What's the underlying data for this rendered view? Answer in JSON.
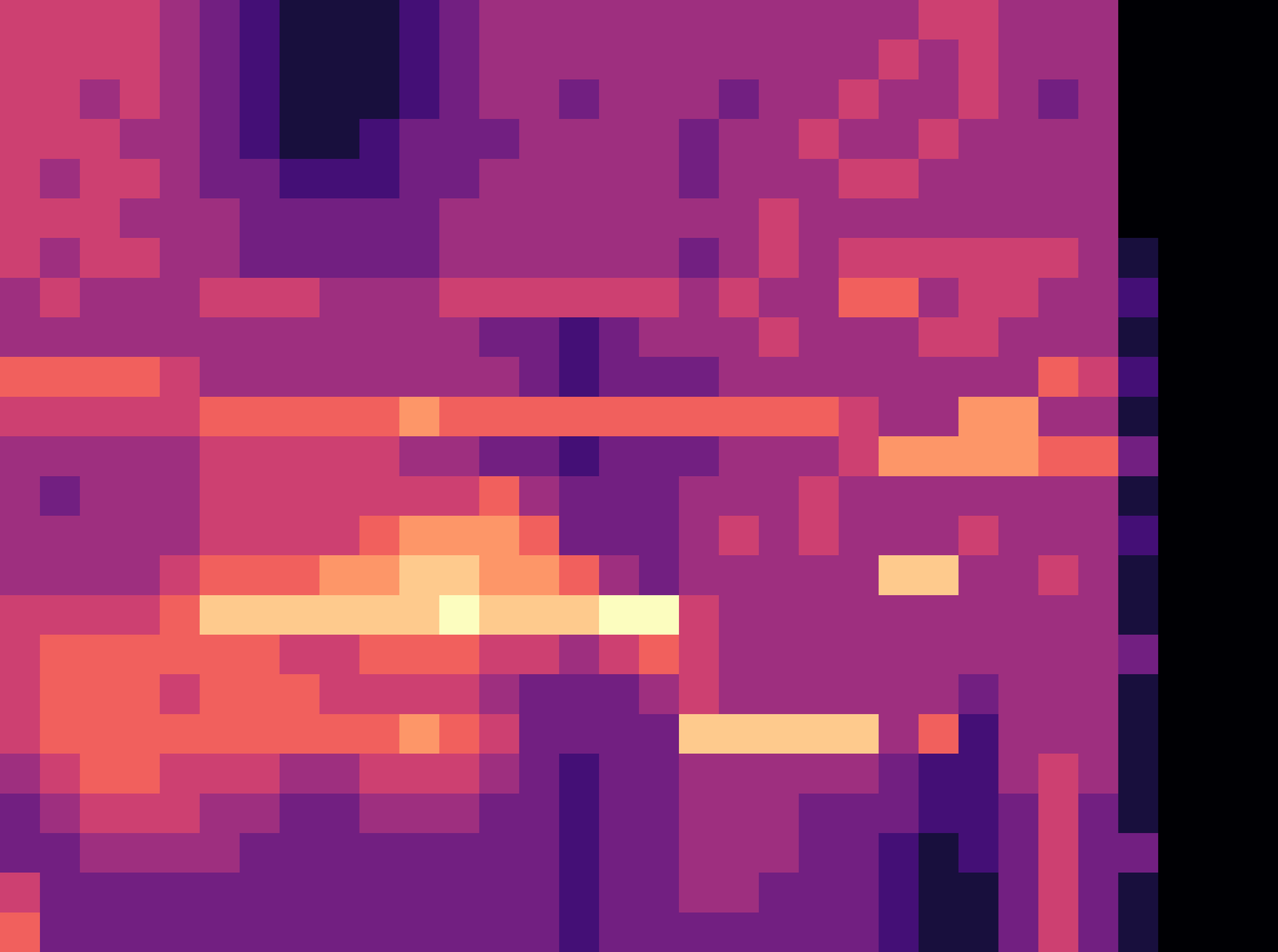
{
  "chart_data": {
    "type": "heatmap",
    "color": "magma",
    "zlim": [
      0,
      9
    ],
    "tick_labels": false,
    "z": [
      [
        5,
        5,
        5,
        5,
        4,
        3,
        2,
        1,
        1,
        1,
        2,
        3,
        4,
        4,
        4,
        4,
        4,
        4,
        4,
        4,
        4,
        4,
        4,
        5,
        5,
        4,
        4,
        4,
        0,
        0,
        0,
        0
      ],
      [
        5,
        5,
        5,
        5,
        4,
        3,
        2,
        1,
        1,
        1,
        2,
        3,
        4,
        4,
        4,
        4,
        4,
        4,
        4,
        4,
        4,
        4,
        5,
        4,
        5,
        4,
        4,
        4,
        0,
        0,
        0,
        0
      ],
      [
        5,
        5,
        4,
        5,
        4,
        3,
        2,
        1,
        1,
        1,
        2,
        3,
        4,
        4,
        3,
        4,
        4,
        4,
        3,
        4,
        4,
        5,
        4,
        4,
        5,
        4,
        3,
        4,
        0,
        0,
        0,
        0
      ],
      [
        5,
        5,
        5,
        4,
        4,
        3,
        2,
        1,
        1,
        2,
        3,
        3,
        3,
        4,
        4,
        4,
        4,
        3,
        4,
        4,
        5,
        4,
        4,
        5,
        4,
        4,
        4,
        4,
        0,
        0,
        0,
        0
      ],
      [
        5,
        4,
        5,
        5,
        4,
        3,
        3,
        2,
        2,
        2,
        3,
        3,
        4,
        4,
        4,
        4,
        4,
        3,
        4,
        4,
        4,
        5,
        5,
        4,
        4,
        4,
        4,
        4,
        0,
        0,
        0,
        0
      ],
      [
        5,
        5,
        5,
        4,
        4,
        4,
        3,
        3,
        3,
        3,
        3,
        4,
        4,
        4,
        4,
        4,
        4,
        4,
        4,
        5,
        4,
        4,
        4,
        4,
        4,
        4,
        4,
        4,
        0,
        0,
        0,
        0
      ],
      [
        5,
        4,
        5,
        5,
        4,
        4,
        3,
        3,
        3,
        3,
        3,
        4,
        4,
        4,
        4,
        4,
        4,
        3,
        4,
        5,
        4,
        5,
        5,
        5,
        5,
        5,
        5,
        4,
        1,
        0,
        0,
        0
      ],
      [
        4,
        5,
        4,
        4,
        4,
        5,
        5,
        5,
        4,
        4,
        4,
        5,
        5,
        5,
        5,
        5,
        5,
        4,
        5,
        4,
        4,
        6,
        6,
        4,
        5,
        5,
        4,
        4,
        2,
        0,
        0,
        0
      ],
      [
        4,
        4,
        4,
        4,
        4,
        4,
        4,
        4,
        4,
        4,
        4,
        4,
        3,
        3,
        2,
        3,
        4,
        4,
        4,
        5,
        4,
        4,
        4,
        5,
        5,
        4,
        4,
        4,
        1,
        0,
        0,
        0
      ],
      [
        6,
        6,
        6,
        6,
        5,
        4,
        4,
        4,
        4,
        4,
        4,
        4,
        4,
        3,
        2,
        3,
        3,
        3,
        4,
        4,
        4,
        4,
        4,
        4,
        4,
        4,
        6,
        5,
        2,
        0,
        0,
        0
      ],
      [
        5,
        5,
        5,
        5,
        5,
        6,
        6,
        6,
        6,
        6,
        7,
        6,
        6,
        6,
        6,
        6,
        6,
        6,
        6,
        6,
        6,
        5,
        4,
        4,
        7,
        7,
        4,
        4,
        1,
        0,
        0,
        0
      ],
      [
        4,
        4,
        4,
        4,
        4,
        5,
        5,
        5,
        5,
        5,
        4,
        4,
        3,
        3,
        2,
        3,
        3,
        3,
        4,
        4,
        4,
        5,
        7,
        7,
        7,
        7,
        6,
        6,
        3,
        0,
        0,
        0
      ],
      [
        4,
        3,
        4,
        4,
        4,
        5,
        5,
        5,
        5,
        5,
        5,
        5,
        6,
        4,
        3,
        3,
        3,
        4,
        4,
        4,
        5,
        4,
        4,
        4,
        4,
        4,
        4,
        4,
        1,
        0,
        0,
        0
      ],
      [
        4,
        4,
        4,
        4,
        4,
        5,
        5,
        5,
        5,
        6,
        7,
        7,
        7,
        6,
        3,
        3,
        3,
        4,
        5,
        4,
        5,
        4,
        4,
        4,
        5,
        4,
        4,
        4,
        2,
        0,
        0,
        0
      ],
      [
        4,
        4,
        4,
        4,
        5,
        6,
        6,
        6,
        7,
        7,
        8,
        8,
        7,
        7,
        6,
        4,
        3,
        4,
        4,
        4,
        4,
        4,
        8,
        8,
        4,
        4,
        5,
        4,
        1,
        0,
        0,
        0
      ],
      [
        5,
        5,
        5,
        5,
        6,
        8,
        8,
        8,
        8,
        8,
        8,
        9,
        8,
        8,
        8,
        9,
        9,
        5,
        4,
        4,
        4,
        4,
        4,
        4,
        4,
        4,
        4,
        4,
        1,
        0,
        0,
        0
      ],
      [
        5,
        6,
        6,
        6,
        6,
        6,
        6,
        5,
        5,
        6,
        6,
        6,
        5,
        5,
        4,
        5,
        6,
        5,
        4,
        4,
        4,
        4,
        4,
        4,
        4,
        4,
        4,
        4,
        3,
        0,
        0,
        0
      ],
      [
        5,
        6,
        6,
        6,
        5,
        6,
        6,
        6,
        5,
        5,
        5,
        5,
        4,
        3,
        3,
        3,
        4,
        5,
        4,
        4,
        4,
        4,
        4,
        4,
        3,
        4,
        4,
        4,
        1,
        0,
        0,
        0
      ],
      [
        5,
        6,
        6,
        6,
        6,
        6,
        6,
        6,
        6,
        6,
        7,
        6,
        5,
        3,
        3,
        3,
        3,
        8,
        8,
        8,
        8,
        8,
        4,
        6,
        2,
        4,
        4,
        4,
        1,
        0,
        0,
        0
      ],
      [
        4,
        5,
        6,
        6,
        5,
        5,
        5,
        4,
        4,
        5,
        5,
        5,
        4,
        3,
        2,
        3,
        3,
        4,
        4,
        4,
        4,
        4,
        3,
        2,
        2,
        4,
        5,
        4,
        1,
        0,
        0,
        0
      ],
      [
        3,
        4,
        5,
        5,
        5,
        4,
        4,
        3,
        3,
        4,
        4,
        4,
        3,
        3,
        2,
        3,
        3,
        4,
        4,
        4,
        3,
        3,
        3,
        2,
        2,
        3,
        5,
        3,
        1,
        0,
        0,
        0
      ],
      [
        3,
        3,
        4,
        4,
        4,
        4,
        3,
        3,
        3,
        3,
        3,
        3,
        3,
        3,
        2,
        3,
        3,
        4,
        4,
        4,
        3,
        3,
        2,
        1,
        2,
        3,
        5,
        3,
        3,
        0,
        0,
        0
      ],
      [
        5,
        3,
        3,
        3,
        3,
        3,
        3,
        3,
        3,
        3,
        3,
        3,
        3,
        3,
        2,
        3,
        3,
        4,
        4,
        3,
        3,
        3,
        2,
        1,
        1,
        3,
        5,
        3,
        1,
        0,
        0,
        0
      ],
      [
        6,
        3,
        3,
        3,
        3,
        3,
        3,
        3,
        3,
        3,
        3,
        3,
        3,
        3,
        2,
        3,
        3,
        3,
        3,
        3,
        3,
        3,
        2,
        1,
        1,
        3,
        5,
        3,
        1,
        0,
        0,
        0
      ]
    ]
  }
}
